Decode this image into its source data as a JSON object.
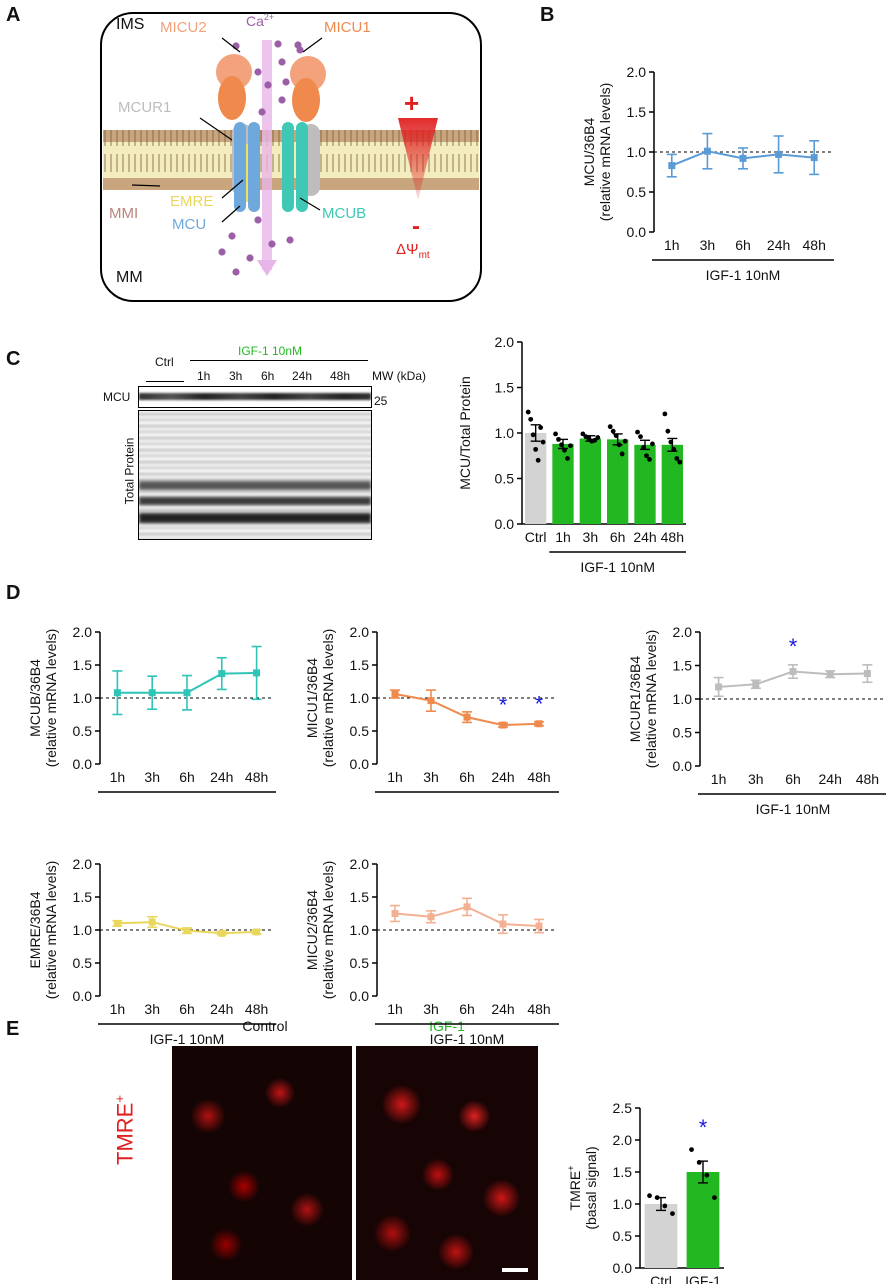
{
  "figure": {
    "panel_labels": [
      "A",
      "B",
      "C",
      "D",
      "E"
    ],
    "treatment_label": "IGF-1 10nM",
    "time_labels": [
      "1h",
      "3h",
      "6h",
      "24h",
      "48h"
    ]
  },
  "schematic": {
    "ims": "IMS",
    "mm": "MM",
    "mmi": "MMI",
    "ca": "Ca",
    "ca_sup": "2+",
    "micu2": "MICU2",
    "micu1": "MICU1",
    "mcur1": "MCUR1",
    "emre": "EMRE",
    "mcu": "MCU",
    "mcub": "MCUB",
    "plus": "+",
    "minus": "-",
    "delta_psi": "ΔΨ",
    "delta_psi_sub": "mt",
    "colors": {
      "micu2": "#f3a27c",
      "micu1": "#ef8a4c",
      "mcur1": "#bdbdbd",
      "emre": "#f0e05a",
      "mcu": "#6fa8dc",
      "mcub": "#3fc8b5",
      "calcium": "#9b5fa5",
      "delta": "#e02020"
    }
  },
  "western": {
    "ctrl": "Ctrl",
    "treatment": "IGF-1 10nM",
    "lanes": [
      "1h",
      "3h",
      "6h",
      "24h",
      "48h"
    ],
    "mw_label": "MW (kDa)",
    "mw_value": "25",
    "band_label": "MCU",
    "total_label": "Total Protein"
  },
  "imaging": {
    "control_caption": "Control",
    "igf_caption": "IGF-1",
    "stain": "TMRE",
    "stain_sup": "+"
  },
  "chart_data": [
    {
      "id": "B",
      "type": "line",
      "title": "",
      "ylabel": "MCU/36B4",
      "ylabel2": "(relative mRNA levels)",
      "xlabel": "IGF-1 10nM",
      "ylim": [
        0,
        2
      ],
      "yticks": [
        "0.0",
        "0.5",
        "1.0",
        "1.5",
        "2.0"
      ],
      "categories": [
        "1h",
        "3h",
        "6h",
        "24h",
        "48h"
      ],
      "series": [
        {
          "name": "MCU",
          "values": [
            0.83,
            1.01,
            0.92,
            0.97,
            0.93
          ],
          "errors": [
            0.14,
            0.22,
            0.13,
            0.23,
            0.21
          ],
          "color": "#5b9bd5"
        }
      ],
      "reference_line": 1.0,
      "sig": []
    },
    {
      "id": "C",
      "type": "bar",
      "title": "",
      "ylabel": "MCU/Total Protein",
      "ylabel2": "",
      "xlabel": "IGF-1 10nM",
      "ylim": [
        0,
        2
      ],
      "yticks": [
        "0.0",
        "0.5",
        "1.0",
        "1.5",
        "2.0"
      ],
      "categories": [
        "Ctrl",
        "1h",
        "3h",
        "6h",
        "24h",
        "48h"
      ],
      "values": [
        1.0,
        0.88,
        0.94,
        0.93,
        0.87,
        0.87
      ],
      "errors": [
        0.09,
        0.05,
        0.03,
        0.06,
        0.05,
        0.07
      ],
      "colors": [
        "#d3d3d3",
        "#22b822",
        "#22b822",
        "#22b822",
        "#22b822",
        "#22b822"
      ],
      "points": [
        [
          1.23,
          1.15,
          0.98,
          0.82,
          0.7,
          1.06,
          0.9
        ],
        [
          0.99,
          0.93,
          0.87,
          0.81,
          0.72,
          0.86
        ],
        [
          0.99,
          0.96,
          0.94,
          0.91,
          0.92,
          0.95
        ],
        [
          1.07,
          1.02,
          0.97,
          0.87,
          0.77,
          0.91
        ],
        [
          1.01,
          0.96,
          0.84,
          0.75,
          0.71,
          0.88
        ],
        [
          1.21,
          1.02,
          0.9,
          0.82,
          0.72,
          0.68
        ]
      ]
    },
    {
      "id": "D1",
      "type": "line",
      "title": "",
      "ylabel": "MCUB/36B4",
      "ylabel2": "(relative mRNA levels)",
      "xlabel": "",
      "ylim": [
        0,
        2
      ],
      "yticks": [
        "0.0",
        "0.5",
        "1.0",
        "1.5",
        "2.0"
      ],
      "categories": [
        "1h",
        "3h",
        "6h",
        "24h",
        "48h"
      ],
      "series": [
        {
          "name": "MCUB",
          "values": [
            1.08,
            1.08,
            1.08,
            1.37,
            1.38
          ],
          "errors": [
            0.33,
            0.25,
            0.26,
            0.24,
            0.4
          ],
          "color": "#2ec4b6"
        }
      ],
      "reference_line": 1.0,
      "sig": []
    },
    {
      "id": "D2",
      "type": "line",
      "title": "",
      "ylabel": "MICU1/36B4",
      "ylabel2": "(relative mRNA levels)",
      "xlabel": "",
      "ylim": [
        0,
        2
      ],
      "yticks": [
        "0.0",
        "0.5",
        "1.0",
        "1.5",
        "2.0"
      ],
      "categories": [
        "1h",
        "3h",
        "6h",
        "24h",
        "48h"
      ],
      "series": [
        {
          "name": "MICU1",
          "values": [
            1.06,
            0.96,
            0.71,
            0.59,
            0.61
          ],
          "errors": [
            0.06,
            0.16,
            0.08,
            0.03,
            0.03
          ],
          "color": "#ef8a4c"
        }
      ],
      "reference_line": 1.0,
      "sig": [
        {
          "index": 3,
          "label": "*"
        },
        {
          "index": 4,
          "label": "*"
        }
      ]
    },
    {
      "id": "D3",
      "type": "line",
      "title": "",
      "ylabel": "MCUR1/36B4",
      "ylabel2": "(relative mRNA levels)",
      "xlabel": "IGF-1 10nM",
      "ylim": [
        0,
        2
      ],
      "yticks": [
        "0.0",
        "0.5",
        "1.0",
        "1.5",
        "2.0"
      ],
      "categories": [
        "1h",
        "3h",
        "6h",
        "24h",
        "48h"
      ],
      "series": [
        {
          "name": "MCUR1",
          "values": [
            1.18,
            1.22,
            1.41,
            1.37,
            1.38
          ],
          "errors": [
            0.14,
            0.06,
            0.1,
            0.05,
            0.13
          ],
          "color": "#bdbdbd"
        }
      ],
      "reference_line": 1.0,
      "sig": [
        {
          "index": 2,
          "label": "*"
        }
      ]
    },
    {
      "id": "D4",
      "type": "line",
      "title": "",
      "ylabel": "EMRE/36B4",
      "ylabel2": "(relative mRNA levels)",
      "xlabel": "IGF-1 10nM",
      "ylim": [
        0,
        2
      ],
      "yticks": [
        "0.0",
        "0.5",
        "1.0",
        "1.5",
        "2.0"
      ],
      "categories": [
        "1h",
        "3h",
        "6h",
        "24h",
        "48h"
      ],
      "series": [
        {
          "name": "EMRE",
          "values": [
            1.1,
            1.12,
            0.99,
            0.95,
            0.97
          ],
          "errors": [
            0.04,
            0.08,
            0.04,
            0.02,
            0.03
          ],
          "color": "#e8d75a"
        }
      ],
      "reference_line": 1.0,
      "sig": []
    },
    {
      "id": "D5",
      "type": "line",
      "title": "",
      "ylabel": "MICU2/36B4",
      "ylabel2": "(relative mRNA levels)",
      "xlabel": "IGF-1 10nM",
      "ylim": [
        0,
        2
      ],
      "yticks": [
        "0.0",
        "0.5",
        "1.0",
        "1.5",
        "2.0"
      ],
      "categories": [
        "1h",
        "3h",
        "6h",
        "24h",
        "48h"
      ],
      "series": [
        {
          "name": "MICU2",
          "values": [
            1.25,
            1.2,
            1.35,
            1.09,
            1.06
          ],
          "errors": [
            0.12,
            0.09,
            0.13,
            0.14,
            0.1
          ],
          "color": "#f4b092"
        }
      ],
      "reference_line": 1.0,
      "sig": []
    },
    {
      "id": "E",
      "type": "bar",
      "title": "",
      "ylabel": "TMRE",
      "ylabel_sup": "+",
      "ylabel2": "(basal signal)",
      "xlabel": "",
      "ylim": [
        0,
        2.5
      ],
      "yticks": [
        "0.0",
        "0.5",
        "1.0",
        "1.5",
        "2.0",
        "2.5"
      ],
      "categories": [
        "Ctrl",
        "IGF-1"
      ],
      "values": [
        1.0,
        1.5
      ],
      "errors": [
        0.1,
        0.17
      ],
      "colors": [
        "#d3d3d3",
        "#22b822"
      ],
      "points": [
        [
          1.13,
          1.1,
          0.97,
          0.85
        ],
        [
          1.85,
          1.65,
          1.45,
          1.1
        ]
      ],
      "sig": [
        {
          "index": 1,
          "label": "*"
        }
      ]
    }
  ]
}
